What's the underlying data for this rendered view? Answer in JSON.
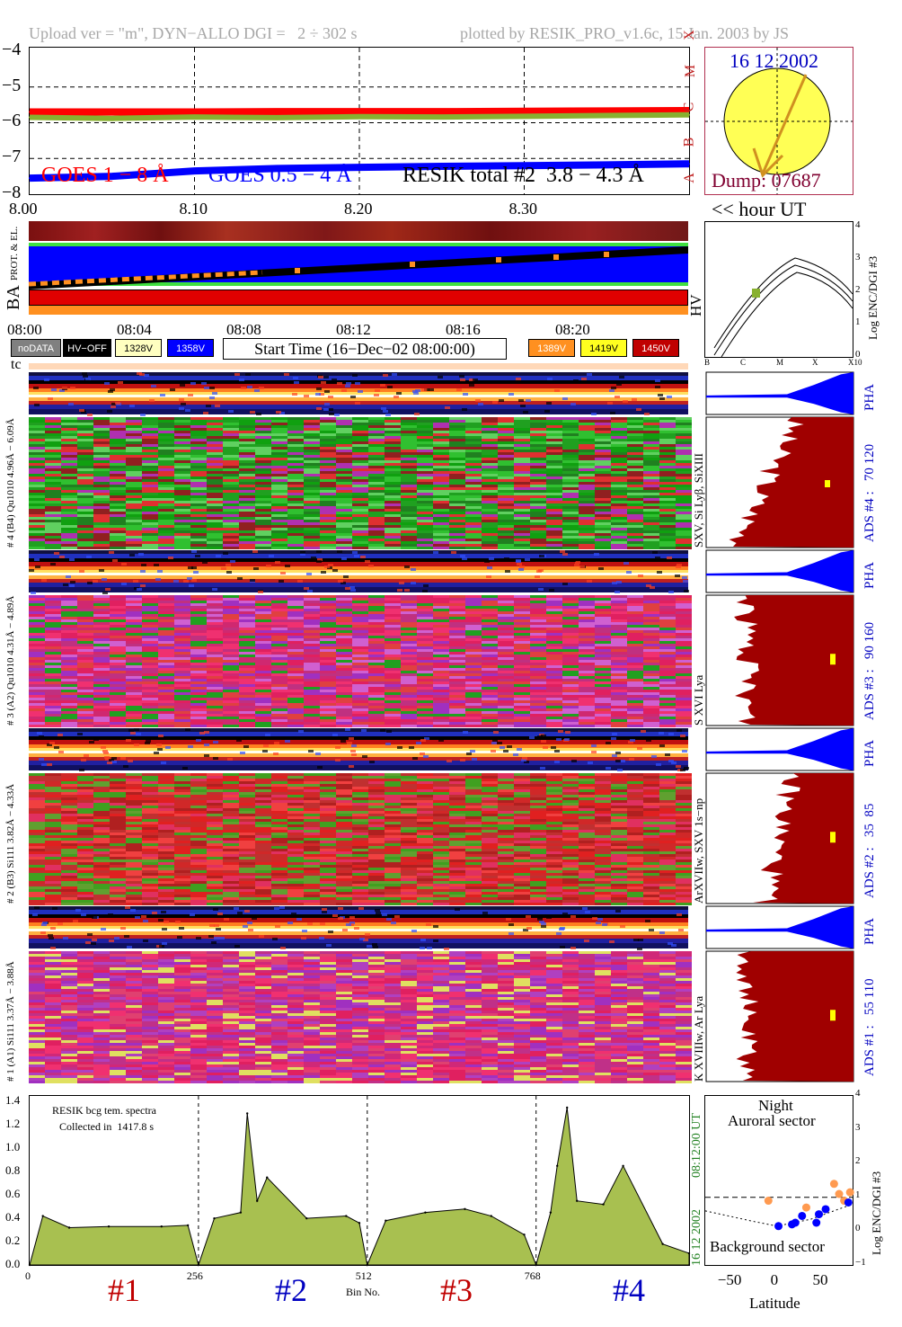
{
  "header": {
    "upload": "Upload ver = \"m\", DYN−ALLO DGI =   2 ÷ 302 s",
    "plotted": "plotted by RESIK_PRO_v1.6c, 15 Jan. 2003 by JS"
  },
  "goes": {
    "yticks": [
      "−4",
      "−5",
      "−6",
      "−7",
      "−8"
    ],
    "classes": [
      "X",
      "M",
      "C",
      "B",
      "A"
    ],
    "legend_goes18": "GOES 1 − 8 Å",
    "legend_goes054": "GOES 0.5 − 4 Å",
    "legend_resik": "RESIK total #2  3.8 − 4.3 Å",
    "xticks": [
      "8.00",
      "8.10",
      "8.20",
      "8.30"
    ],
    "hour_label": "<< hour UT",
    "colors": {
      "goes18": "#ff0000",
      "goes054": "#0000ff",
      "resik": "#88b030"
    }
  },
  "sun": {
    "date": "16 12 2002",
    "dump": "Dump: 07687"
  },
  "status_panel": {
    "label_ba": "BA",
    "label_prot": "PROT. & EL.",
    "time_ticks": [
      "08:00",
      "08:04",
      "08:08",
      "08:12",
      "08:16",
      "08:20"
    ],
    "legend": [
      {
        "label": "noDATA",
        "bg": "#808080",
        "fg": "#ffffff"
      },
      {
        "label": "HV−OFF",
        "bg": "#000000",
        "fg": "#ffffff"
      },
      {
        "label": "1328V",
        "bg": "#ffffc0",
        "fg": "#000000"
      },
      {
        "label": "1358V",
        "bg": "#0000ff",
        "fg": "#ffffff"
      },
      {
        "label": "1389V",
        "bg": "#ff9020",
        "fg": "#ffffff"
      },
      {
        "label": "1419V",
        "bg": "#ffff20",
        "fg": "#000000"
      },
      {
        "label": "1450V",
        "bg": "#c00000",
        "fg": "#ffffff"
      }
    ],
    "start_time": "Start Time (16−Dec−02 08:00:00)",
    "tc": "tc"
  },
  "hv_panel": {
    "label": "HV",
    "ylabel": "Log ENC/DGI #3",
    "yticks": [
      "4",
      "3",
      "2",
      "1",
      "0"
    ],
    "xticks": [
      "B",
      "C",
      "M",
      "X",
      "X10"
    ]
  },
  "channels": [
    {
      "pha_label": "# 4 (B4) Qu1010 4.96Å − 6.09Å",
      "ads_lines": "SXV, Si Lyβ, SiXIII",
      "ads_label": "ADS #4 :   70 120",
      "pha_right": "PHA"
    },
    {
      "pha_label": "# 3 (A2) Qu1010 4.31Å − 4.89Å",
      "ads_lines": "S XVI Lya",
      "ads_label": "ADS #3 :   90 160",
      "pha_right": "PHA"
    },
    {
      "pha_label": "# 2 (B3) Si111 3.82Å − 4.33Å",
      "ads_lines": "ArXVIIw, SXV 1s−np",
      "ads_label": "ADS #2 :   35  85",
      "pha_right": "PHA"
    },
    {
      "pha_label": "# 1 (A1) Si111 3.37Å − 3.88Å",
      "ads_lines": "K XVIIIw, Ar Lya",
      "ads_label": "ADS #1 :   55 110",
      "pha_right": "PHA"
    }
  ],
  "spectrum": {
    "note1": "RESIK bcg tem. spectra",
    "note2": "Collected in  1417.8 s",
    "yticks": [
      "1.4",
      "1.2",
      "1.0",
      "0.8",
      "0.6",
      "0.4",
      "0.2",
      "0.0"
    ],
    "xticks": [
      "0",
      "256",
      "512",
      "768"
    ],
    "xlabel": "Bin No.",
    "channels": [
      "#1",
      "#2",
      "#3",
      "#4"
    ],
    "channel_colors": [
      "#c00000",
      "#0000c0",
      "#c00000",
      "#0000c0"
    ],
    "date_right": "16 12 2002",
    "time_right": "08:12:00 UT"
  },
  "latitude": {
    "title1": "Night",
    "title2": "Auroral sector",
    "bottom": "Background sector",
    "xlabel": "Latitude",
    "xticks": [
      "−50",
      "0",
      "50"
    ],
    "yticks": [
      "4",
      "3",
      "2",
      "1",
      "0",
      "−1"
    ],
    "ylabel": "Log ENC/DGI #3"
  },
  "chart_data": [
    {
      "type": "line",
      "title": "",
      "xlabel": "hour UT",
      "ylabel": "",
      "x": [
        8.0,
        8.05,
        8.1,
        8.15,
        8.2,
        8.25,
        8.3,
        8.35,
        8.4
      ],
      "ylim": [
        -8.0,
        -3.9
      ],
      "xlim": [
        8.0,
        8.4
      ],
      "grid": true,
      "series": [
        {
          "name": "GOES 1 − 8 Å",
          "color": "#ff0000",
          "values": [
            -5.7,
            -5.7,
            -5.7,
            -5.69,
            -5.69,
            -5.69,
            -5.68,
            -5.67,
            -5.66
          ]
        },
        {
          "name": "GOES 0.5 − 4 Å",
          "color": "#0000ff",
          "values": [
            -7.55,
            -7.5,
            -7.35,
            -7.28,
            -7.25,
            -7.22,
            -7.2,
            -7.18,
            -7.15
          ]
        },
        {
          "name": "RESIK total #2  3.8 − 4.3 Å",
          "color": "#88b030",
          "values": [
            -5.85,
            -5.88,
            -5.84,
            -5.86,
            -5.83,
            -5.84,
            -5.82,
            -5.8,
            -5.78
          ]
        }
      ]
    },
    {
      "type": "area",
      "title": "",
      "xlabel": "Bin No.",
      "ylabel": "",
      "xlim": [
        0,
        1000
      ],
      "ylim": [
        0,
        1.45
      ],
      "x": [
        0,
        20,
        60,
        120,
        200,
        240,
        256,
        280,
        320,
        330,
        345,
        360,
        420,
        480,
        500,
        512,
        540,
        600,
        660,
        700,
        750,
        768,
        790,
        800,
        815,
        830,
        870,
        900,
        960,
        1000
      ],
      "series": [
        {
          "name": "",
          "color": "#a8c050",
          "values": [
            0.0,
            0.42,
            0.32,
            0.33,
            0.33,
            0.34,
            0.0,
            0.4,
            0.45,
            1.3,
            0.55,
            0.75,
            0.4,
            0.42,
            0.36,
            0.0,
            0.38,
            0.45,
            0.48,
            0.42,
            0.26,
            0.0,
            0.45,
            0.85,
            1.35,
            0.55,
            0.52,
            0.85,
            0.18,
            0.1
          ]
        }
      ]
    },
    {
      "type": "scatter",
      "title": "",
      "xlabel": "Latitude",
      "ylabel": "Log ENC/DGI #3",
      "xlim": [
        -85,
        90
      ],
      "ylim": [
        -1,
        4
      ],
      "series": [
        {
          "name": "",
          "color": "#ff9a50",
          "points": [
            [
              -10,
              0.9
            ],
            [
              35,
              0.7
            ],
            [
              68,
              1.4
            ],
            [
              74,
              1.1
            ],
            [
              80,
              0.9
            ],
            [
              87,
              1.15
            ]
          ]
        },
        {
          "name": "",
          "color": "#0000ff",
          "points": [
            [
              2,
              0.15
            ],
            [
              18,
              0.2
            ],
            [
              22,
              0.25
            ],
            [
              30,
              0.45
            ],
            [
              47,
              0.25
            ],
            [
              50,
              0.5
            ],
            [
              58,
              0.65
            ],
            [
              85,
              0.85
            ]
          ]
        }
      ]
    }
  ]
}
